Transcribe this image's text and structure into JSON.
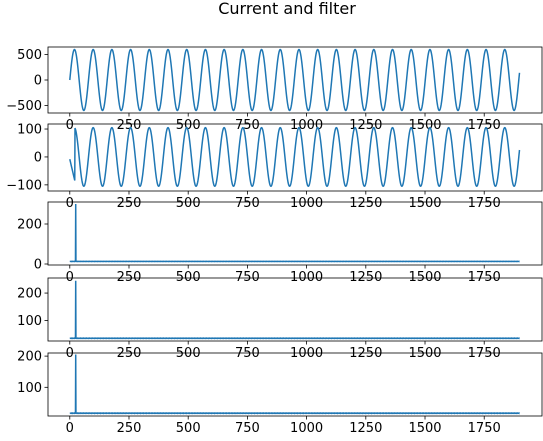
{
  "figure": {
    "title": "Current and filter"
  },
  "line_color": "#1f77b4",
  "chart_data": [
    {
      "type": "line",
      "xlim": [
        -92,
        1994
      ],
      "ylim": [
        -650,
        650
      ],
      "xticks": [
        0,
        250,
        500,
        750,
        1000,
        1250,
        1500,
        1750
      ],
      "yticks": [
        -500,
        0,
        500
      ],
      "signal": {
        "kind": "sine",
        "n_points": 1900,
        "amplitude": 600,
        "period": 79,
        "phase_start": 0
      }
    },
    {
      "type": "line",
      "xlim": [
        -92,
        1994
      ],
      "ylim": [
        -122,
        118
      ],
      "xticks": [
        0,
        250,
        500,
        750,
        1000,
        1250,
        1500,
        1750
      ],
      "yticks": [
        -100,
        0,
        100
      ],
      "signal": {
        "kind": "sine",
        "n_points": 1900,
        "amplitude": 105,
        "period": 79,
        "phase_start": 22
      }
    },
    {
      "type": "line",
      "xlim": [
        -92,
        1994
      ],
      "ylim": [
        -5,
        310
      ],
      "xticks": [
        0,
        250,
        500,
        750,
        1000,
        1250,
        1500,
        1750
      ],
      "yticks": [
        0,
        200
      ],
      "signal": {
        "kind": "spike",
        "n_points": 1900,
        "spike_at": 25,
        "spike_value": 300,
        "baseline": 13
      }
    },
    {
      "type": "line",
      "xlim": [
        -92,
        1994
      ],
      "ylim": [
        25,
        255
      ],
      "xticks": [
        0,
        250,
        500,
        750,
        1000,
        1250,
        1500,
        1750
      ],
      "yticks": [
        100,
        200
      ],
      "signal": {
        "kind": "spike",
        "n_points": 1900,
        "spike_at": 25,
        "spike_value": 245,
        "baseline": 35
      }
    },
    {
      "type": "line",
      "xlim": [
        -92,
        1994
      ],
      "ylim": [
        8,
        210
      ],
      "xticks": [
        0,
        250,
        500,
        750,
        1000,
        1250,
        1500,
        1750
      ],
      "yticks": [
        100,
        200
      ],
      "signal": {
        "kind": "spike",
        "n_points": 1900,
        "spike_at": 25,
        "spike_value": 205,
        "baseline": 17
      }
    }
  ]
}
